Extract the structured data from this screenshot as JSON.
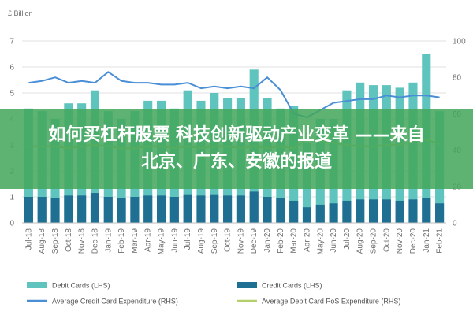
{
  "headline": {
    "line1": "如何买杠杆股票 科技创新驱动产业变革 ——来自",
    "line2": "北京、广东、安徽的报道"
  },
  "chart_data": {
    "type": "bar",
    "unit_label": "£ Billion",
    "categories": [
      "Jul-18",
      "Aug-18",
      "Sep-18",
      "Oct-18",
      "Nov-18",
      "Dec-18",
      "Jan-19",
      "Feb-19",
      "Mar-19",
      "Apr-19",
      "May-19",
      "Jun-19",
      "Jul-19",
      "Aug-19",
      "Sep-19",
      "Oct-19",
      "Nov-19",
      "Dec-19",
      "Jan-20",
      "Feb-20",
      "Mar-20",
      "Apr-20",
      "May-20",
      "Jun-20",
      "Jul-20",
      "Aug-20",
      "Sep-20",
      "Oct-20",
      "Nov-20",
      "Dec-20",
      "Jan-21",
      "Feb-21"
    ],
    "y_left": {
      "range": [
        0,
        7
      ],
      "ticks": [
        "0",
        "1",
        "2",
        "3",
        "4",
        "5",
        "6",
        "7"
      ]
    },
    "y_right": {
      "range": [
        0,
        100
      ],
      "ticks": [
        "0",
        "20",
        "40",
        "60",
        "80",
        "100"
      ]
    },
    "grid": true,
    "legend_position": "bottom",
    "series": [
      {
        "name": "Debit Cards (LHS)",
        "kind": "bar",
        "axis": "left",
        "color": "#5ec4bd",
        "values": [
          4.4,
          4.3,
          4.0,
          4.6,
          4.6,
          5.1,
          4.3,
          4.0,
          4.3,
          4.7,
          4.7,
          4.4,
          5.1,
          4.7,
          5.0,
          4.8,
          4.8,
          5.9,
          4.8,
          4.4,
          4.5,
          3.1,
          4.0,
          4.0,
          5.1,
          5.4,
          5.3,
          5.3,
          5.2,
          5.4,
          6.5,
          4.3
        ]
      },
      {
        "name": "Credit Cards (LHS)",
        "kind": "bar",
        "axis": "left",
        "color": "#1f6f93",
        "values": [
          1.0,
          1.0,
          0.95,
          1.05,
          1.05,
          1.15,
          1.0,
          0.95,
          1.0,
          1.05,
          1.05,
          1.0,
          1.1,
          1.05,
          1.1,
          1.05,
          1.05,
          1.2,
          1.0,
          0.95,
          0.85,
          0.6,
          0.7,
          0.75,
          0.85,
          0.9,
          0.9,
          0.9,
          0.85,
          0.9,
          0.95,
          0.75
        ]
      },
      {
        "name": "Average Credit Card Expenditure (RHS)",
        "kind": "line",
        "axis": "right",
        "color": "#4a8fd6",
        "values": [
          77,
          78,
          80,
          77,
          78,
          77,
          83,
          78,
          77,
          77,
          76,
          76,
          77,
          74,
          75,
          74,
          75,
          74,
          80,
          73,
          60,
          58,
          62,
          66,
          67,
          68,
          68,
          70,
          69,
          70,
          70,
          69
        ]
      },
      {
        "name": "Average Debit Card PoS Expenditure (RHS)",
        "kind": "line",
        "axis": "right",
        "color": "#b5cf6a",
        "values": [
          42,
          42,
          42,
          41,
          42,
          43,
          42,
          41,
          41,
          42,
          42,
          41,
          42,
          41,
          42,
          42,
          41,
          42,
          41,
          42,
          41,
          46,
          45,
          44,
          43,
          42,
          42,
          43,
          43,
          45,
          46,
          43
        ]
      }
    ]
  }
}
